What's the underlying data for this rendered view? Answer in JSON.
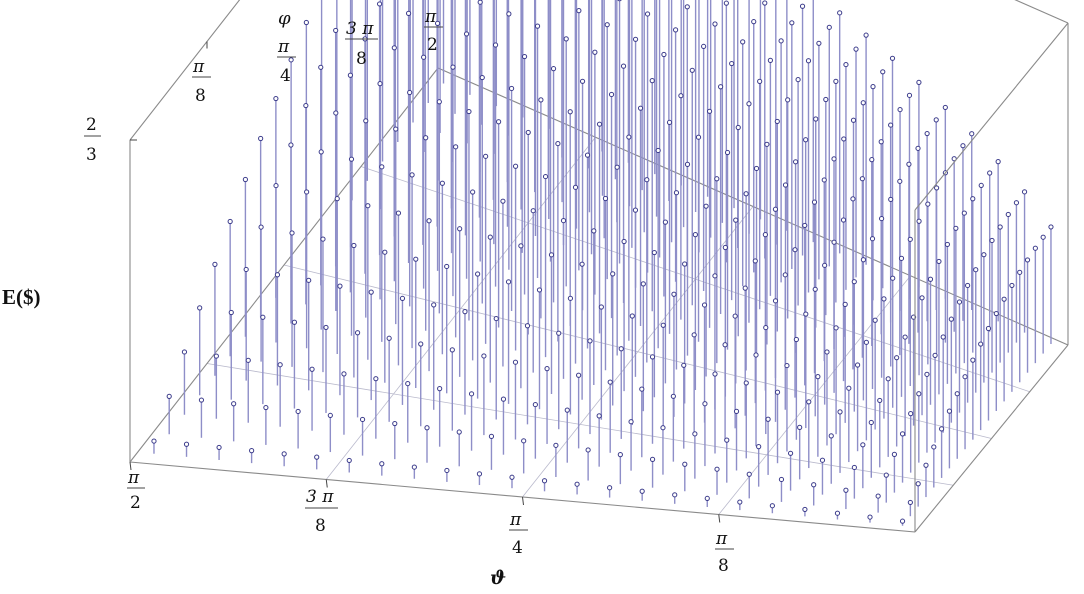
{
  "chart_data": {
    "type": "3d-stem",
    "zlabel": "E($)",
    "xlabel": "ϑ",
    "ylabel": "φ",
    "x_tick_labels": [
      {
        "num": "π",
        "den": "2",
        "value": 1.5708
      },
      {
        "num": "3 π",
        "den": "8",
        "value": 1.1781
      },
      {
        "num": "π",
        "den": "4",
        "value": 0.7854
      },
      {
        "num": "π",
        "den": "8",
        "value": 0.3927
      }
    ],
    "y_tick_labels": [
      {
        "num": "π",
        "den": "8",
        "value": 0.3927
      },
      {
        "num": "π",
        "den": "4",
        "value": 0.7854
      },
      {
        "num": "3 π",
        "den": "8",
        "value": 1.1781
      },
      {
        "num": "π",
        "den": "2",
        "value": 1.5708
      }
    ],
    "z_tick_labels": [
      {
        "num": "2",
        "den": "3",
        "value": 0.6667
      }
    ],
    "xlim": [
      0,
      1.5708
    ],
    "ylim": [
      0,
      1.5708
    ],
    "zlim": [
      0,
      0.6667
    ],
    "x_direction": "decreasing",
    "grid_points_x": 24,
    "grid_points_y": 20,
    "surface_formula": "E = (2/3) * sin(phi) * (0.3 + 0.7 * sin(theta)^0.7) approximately",
    "colors": {
      "stem": "#8e8ec8",
      "marker_edge": "#3a3a8a",
      "box": "#8a8a8a"
    }
  }
}
